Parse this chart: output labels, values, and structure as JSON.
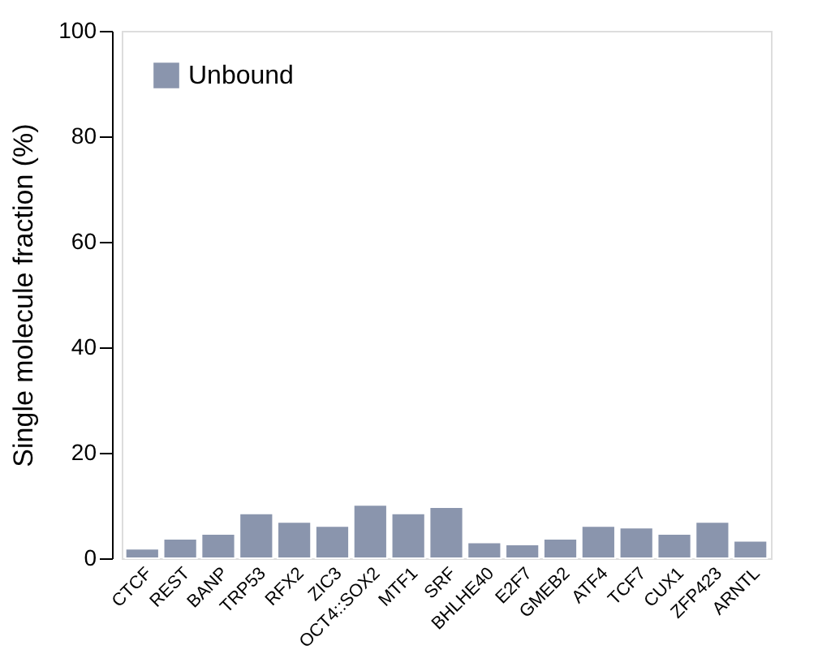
{
  "chart_data": {
    "type": "bar",
    "ylabel": "Single molecule fraction (%)",
    "categories": [
      "CTCF",
      "REST",
      "BANP",
      "TRP53",
      "RFX2",
      "ZIC3",
      "OCT4::SOX2",
      "MTF1",
      "SRF",
      "BHLHE40",
      "E2F7",
      "GMEB2",
      "ATF4",
      "TCF7",
      "CUX1",
      "ZFP423",
      "ARNTL"
    ],
    "series": [
      {
        "name": "Unbound",
        "color": "#8a95ad",
        "values": [
          1.8,
          3.7,
          4.6,
          8.5,
          6.9,
          6.1,
          10.1,
          8.5,
          9.7,
          3.0,
          2.6,
          3.7,
          6.1,
          5.8,
          4.6,
          6.9,
          3.3
        ]
      }
    ],
    "ylim": [
      0,
      100
    ],
    "yticks": [
      0,
      20,
      40,
      60,
      80,
      100
    ],
    "grid": false,
    "legend": "top left"
  }
}
